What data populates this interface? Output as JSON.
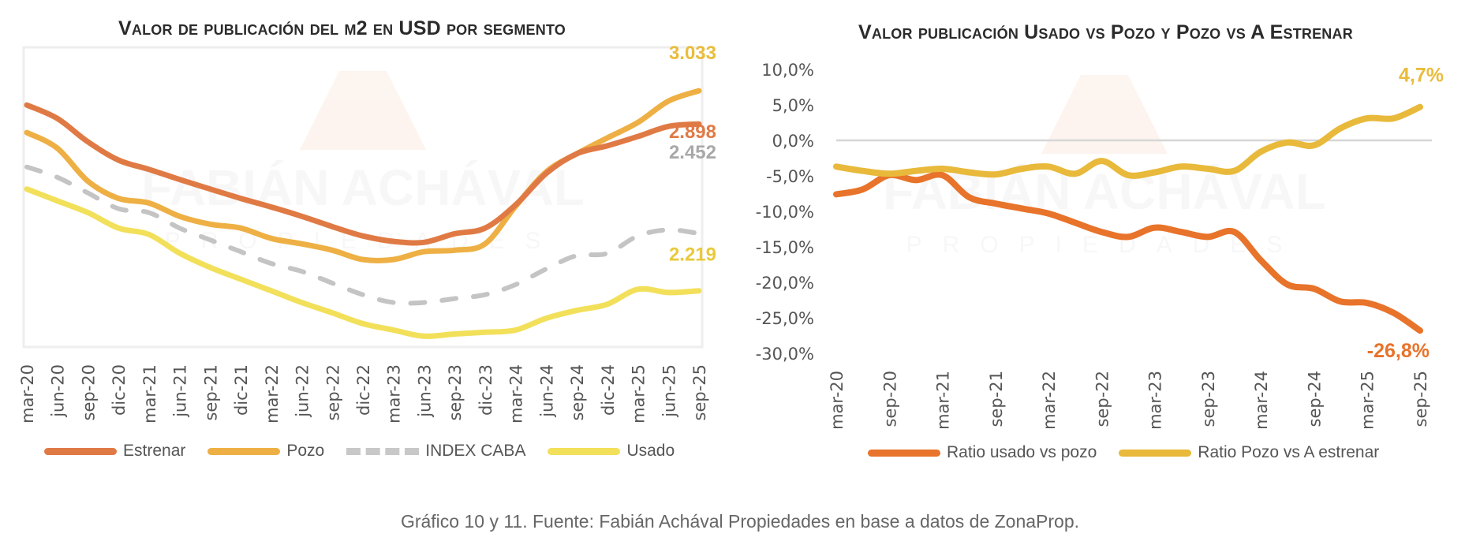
{
  "caption": "Gráfico 10 y 11. Fuente: Fabián Achával Propiedades en base a datos de ZonaProp.",
  "watermark": {
    "brand": "FABIÁN ACHÁVAL",
    "sub": "PROPIEDADES"
  },
  "colors": {
    "estrenar": "#e07a45",
    "pozo": "#eeb044",
    "index": "#c4c4c4",
    "usado": "#f2e05a",
    "ratio_usado_pozo": "#e8732a",
    "ratio_pozo_estrenar": "#e8b93a",
    "label_pozo": "#e9bc3c",
    "label_estrenar": "#e07a45",
    "label_index": "#a8a8a8",
    "label_usado": "#e9c93c"
  },
  "chart_data": [
    {
      "type": "line",
      "title": "Valor de publicación del m2 en USD por segmento",
      "xlabel": "",
      "ylabel": "",
      "y_axis_visible": false,
      "ylim": [
        1990,
        3210
      ],
      "grid": false,
      "legend_position": "bottom",
      "categories": [
        "mar-20",
        "jun-20",
        "sep-20",
        "dic-20",
        "mar-21",
        "jun-21",
        "sep-21",
        "dic-21",
        "mar-22",
        "jun-22",
        "sep-22",
        "dic-22",
        "mar-23",
        "jun-23",
        "sep-23",
        "dic-23",
        "mar-24",
        "jun-24",
        "sep-24",
        "dic-24",
        "mar-25",
        "jun-25",
        "sep-25"
      ],
      "series": [
        {
          "name": "Estrenar",
          "style": "solid",
          "end_label": "2.898",
          "values": [
            2975,
            2920,
            2825,
            2751,
            2713,
            2672,
            2633,
            2595,
            2560,
            2522,
            2480,
            2442,
            2420,
            2416,
            2451,
            2474,
            2569,
            2697,
            2777,
            2809,
            2847,
            2888,
            2898
          ]
        },
        {
          "name": "Pozo",
          "style": "solid",
          "end_label": "3.033",
          "values": [
            2863,
            2799,
            2665,
            2595,
            2576,
            2522,
            2490,
            2474,
            2432,
            2410,
            2384,
            2346,
            2346,
            2378,
            2384,
            2410,
            2563,
            2703,
            2777,
            2841,
            2904,
            2991,
            3033
          ]
        },
        {
          "name": "INDEX CABA",
          "style": "dashed",
          "end_label": "2.452",
          "values": [
            2723,
            2681,
            2617,
            2553,
            2537,
            2474,
            2426,
            2378,
            2330,
            2298,
            2250,
            2203,
            2171,
            2171,
            2187,
            2203,
            2244,
            2308,
            2362,
            2371,
            2442,
            2467,
            2452
          ]
        },
        {
          "name": "Usado",
          "style": "solid",
          "end_label": "2.219",
          "values": [
            2633,
            2585,
            2537,
            2474,
            2448,
            2372,
            2314,
            2266,
            2219,
            2171,
            2129,
            2085,
            2059,
            2034,
            2043,
            2050,
            2059,
            2107,
            2139,
            2164,
            2225,
            2212,
            2219
          ]
        }
      ]
    },
    {
      "type": "line",
      "title": "Valor publicación Usado vs Pozo y Pozo vs A Estrenar",
      "xlabel": "",
      "ylabel": "",
      "ylim": [
        -30,
        10
      ],
      "yticks": [
        "10,0%",
        "5,0%",
        "0,0%",
        "-5,0%",
        "-10,0%",
        "-15,0%",
        "-20,0%",
        "-25,0%",
        "-30,0%"
      ],
      "ytick_values": [
        10,
        5,
        0,
        -5,
        -10,
        -15,
        -20,
        -25,
        -30
      ],
      "zero_line": true,
      "grid": false,
      "legend_position": "bottom",
      "categories": [
        "mar-20",
        "jun-20",
        "sep-20",
        "dic-20",
        "mar-21",
        "jun-21",
        "sep-21",
        "dic-21",
        "mar-22",
        "jun-22",
        "sep-22",
        "dic-22",
        "mar-23",
        "jun-23",
        "sep-23",
        "dic-23",
        "mar-24",
        "jun-24",
        "sep-24",
        "dic-24",
        "mar-25",
        "jun-25",
        "sep-25"
      ],
      "tick_labels": [
        "mar-20",
        "sep-20",
        "mar-21",
        "sep-21",
        "mar-22",
        "sep-22",
        "mar-23",
        "sep-23",
        "mar-24",
        "sep-24",
        "mar-25",
        "sep-25"
      ],
      "series": [
        {
          "name": "Ratio usado vs pozo",
          "end_label": "-26,8%",
          "values": [
            -7.6,
            -6.9,
            -4.9,
            -5.6,
            -4.9,
            -8.0,
            -8.9,
            -9.6,
            -10.3,
            -11.6,
            -12.9,
            -13.6,
            -12.3,
            -12.9,
            -13.6,
            -12.9,
            -16.9,
            -20.3,
            -20.9,
            -22.7,
            -22.9,
            -24.3,
            -26.8
          ]
        },
        {
          "name": "Ratio Pozo vs A estrenar",
          "end_label": "4,7%",
          "values": [
            -3.7,
            -4.3,
            -4.7,
            -4.3,
            -4.0,
            -4.5,
            -4.8,
            -4.0,
            -3.7,
            -4.7,
            -2.9,
            -4.9,
            -4.5,
            -3.7,
            -4.0,
            -4.3,
            -1.6,
            -0.3,
            -0.7,
            1.7,
            3.1,
            3.1,
            4.7
          ]
        }
      ]
    }
  ]
}
